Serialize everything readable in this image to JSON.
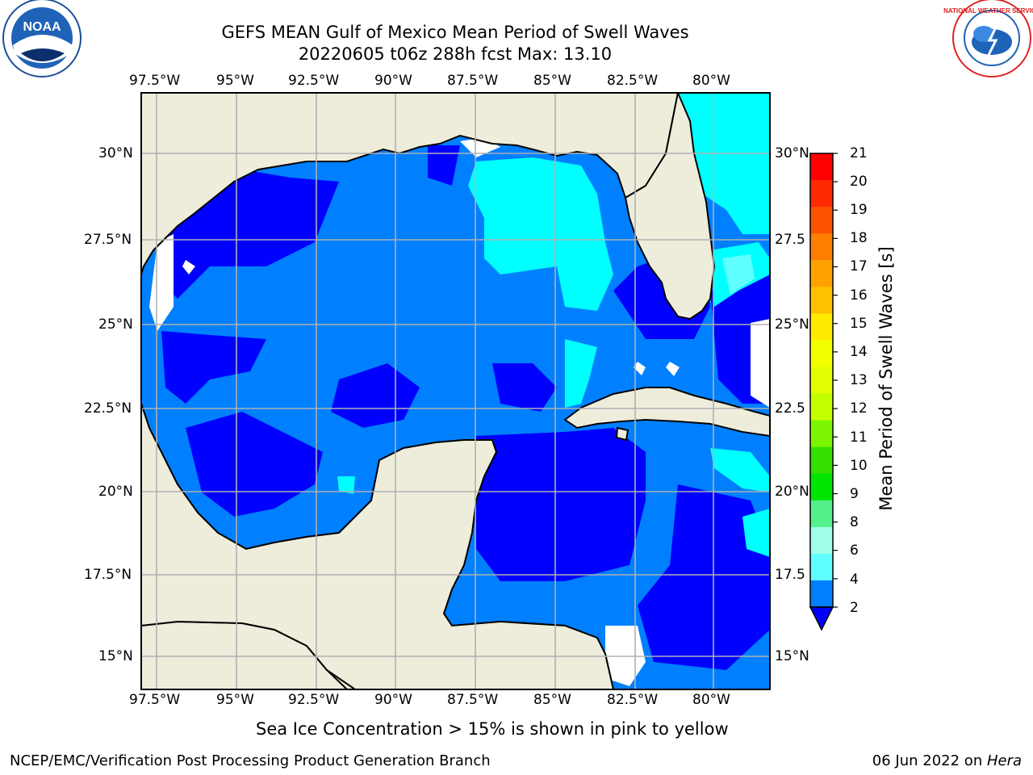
{
  "title": {
    "line1": "GEFS MEAN Gulf of Mexico Mean Period of Swell Waves",
    "line2": "20220605 t06z 288h fcst   Max: 13.10"
  },
  "logos": {
    "left": "NOAA",
    "right": "NATIONAL WEATHER SERVICE"
  },
  "map": {
    "lon_labels": [
      "97.5°W",
      "95°W",
      "92.5°W",
      "90°W",
      "87.5°W",
      "85°W",
      "82.5°W",
      "80°W"
    ],
    "lat_labels_left": [
      "30°N",
      "27.5°N",
      "25°N",
      "22.5°N",
      "20°N",
      "17.5°N",
      "15°N"
    ],
    "lat_labels_right": [
      "30°N",
      "27.5",
      "25°N",
      "22.5",
      "20°N",
      "17.5",
      "15°N"
    ],
    "land_color": "#eeeddc",
    "grid_color": "#b0b0b0"
  },
  "colorbar": {
    "label": "Mean Period of Swell Waves [s]",
    "ticks": [
      "21",
      "20",
      "19",
      "18",
      "17",
      "16",
      "15",
      "14",
      "13",
      "12",
      "11",
      "10",
      "9",
      "8",
      "6",
      "4",
      "2"
    ],
    "colors": [
      "#ff0000",
      "#ff2a00",
      "#ff5200",
      "#ff7f00",
      "#ffa200",
      "#ffc000",
      "#ffea00",
      "#f2ff00",
      "#e1ff00",
      "#c4ff00",
      "#7cf500",
      "#33e000",
      "#00e600",
      "#55f08c",
      "#a0ffe6",
      "#60ffff",
      "#00ffff",
      "#0080ff"
    ],
    "extend_color": "#0000ff"
  },
  "notes": {
    "ice": "Sea Ice Concentration > 15% is shown in pink to yellow",
    "credit": "NCEP/EMC/Verification Post Processing Product Generation Branch",
    "date": "06 Jun 2022 on ",
    "host": "Hera"
  }
}
